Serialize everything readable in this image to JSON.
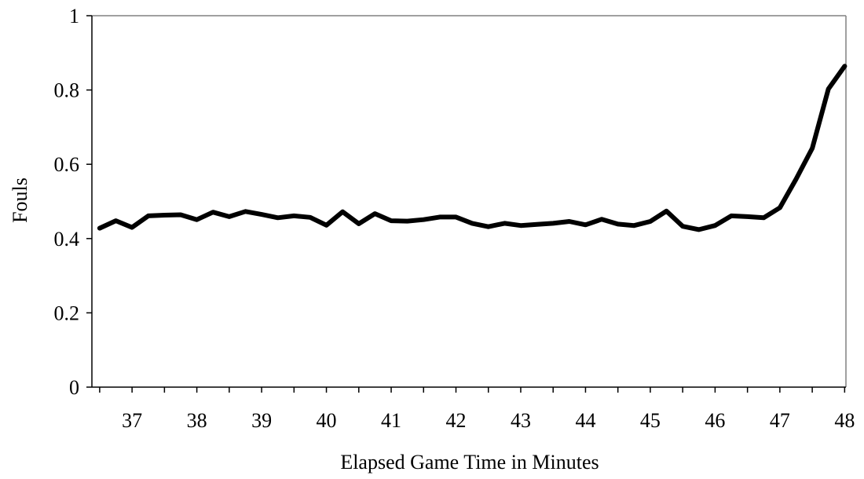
{
  "chart_data": {
    "type": "line",
    "title": "",
    "xlabel": "Elapsed Game Time in Minutes",
    "ylabel": "Fouls",
    "xlim": [
      36.38,
      48.02
    ],
    "ylim": [
      0,
      1
    ],
    "grid": false,
    "legend": "none",
    "line_color": "#000000",
    "xticks": [
      "37",
      "38",
      "39",
      "40",
      "41",
      "42",
      "43",
      "44",
      "45",
      "46",
      "47",
      "48"
    ],
    "yticks": [
      "0",
      "0.2",
      "0.4",
      "0.6",
      "0.8",
      "1"
    ],
    "series": [
      {
        "x": [
          36.5,
          36.75,
          37.0,
          37.25,
          37.5,
          37.75,
          38.0,
          38.25,
          38.5,
          38.75,
          39.0,
          39.25,
          39.5,
          39.75,
          40.0,
          40.25,
          40.5,
          40.75,
          41.0,
          41.25,
          41.5,
          41.75,
          42.0,
          42.25,
          42.5,
          42.75,
          43.0,
          43.25,
          43.5,
          43.75,
          44.0,
          44.25,
          44.5,
          44.75,
          45.0,
          45.25,
          45.5,
          45.75,
          46.0,
          46.25,
          46.5,
          46.75,
          47.0,
          47.25,
          47.5,
          47.75,
          48.0
        ],
        "y": [
          0.428,
          0.448,
          0.43,
          0.461,
          0.463,
          0.464,
          0.451,
          0.471,
          0.459,
          0.473,
          0.465,
          0.456,
          0.461,
          0.457,
          0.436,
          0.472,
          0.44,
          0.467,
          0.448,
          0.447,
          0.451,
          0.458,
          0.458,
          0.441,
          0.432,
          0.441,
          0.435,
          0.438,
          0.441,
          0.446,
          0.437,
          0.452,
          0.439,
          0.435,
          0.446,
          0.474,
          0.433,
          0.424,
          0.435,
          0.461,
          0.459,
          0.456,
          0.483,
          0.56,
          0.643,
          0.803,
          0.864
        ]
      }
    ]
  }
}
